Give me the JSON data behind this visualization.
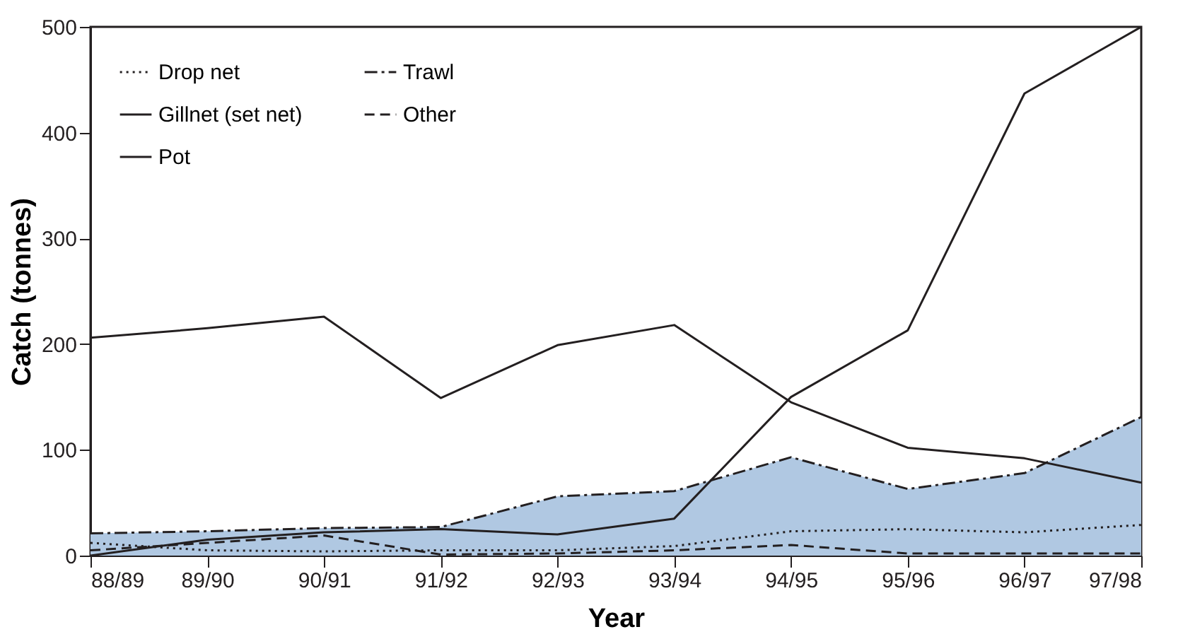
{
  "chart_data": {
    "type": "line",
    "xlabel": "Year",
    "ylabel": "Catch (tonnes)",
    "categories": [
      "88/89",
      "89/90",
      "90/91",
      "91/92",
      "92/93",
      "93/94",
      "94/95",
      "95/96",
      "96/97",
      "97/98"
    ],
    "ylim": [
      0,
      500
    ],
    "yticks": [
      0,
      100,
      200,
      300,
      400,
      500
    ],
    "grid": false,
    "legend": "top left",
    "series": [
      {
        "name": "Drop net",
        "color": "#231f20",
        "line_style": "dotted",
        "values": [
          12,
          5,
          4,
          5,
          5,
          9,
          23,
          25,
          22,
          29
        ]
      },
      {
        "name": "Gillnet (set net)",
        "color": "#231f20",
        "line_style": "solid",
        "values": [
          206,
          215,
          226,
          149,
          199,
          218,
          145,
          102,
          92,
          69
        ]
      },
      {
        "name": "Pot",
        "color": "#231f20",
        "line_style": "solid",
        "values": [
          0,
          15,
          22,
          25,
          20,
          35,
          150,
          213,
          437,
          500
        ]
      },
      {
        "name": "Trawl",
        "type": "area",
        "color": "#b0c8e2",
        "line_style": "dashdot",
        "values": [
          21,
          23,
          26,
          27,
          56,
          61,
          93,
          63,
          78,
          131
        ]
      },
      {
        "name": "Other",
        "color": "#231f20",
        "line_style": "dashed",
        "values": [
          5,
          12,
          19,
          1,
          2,
          5,
          10,
          2,
          2,
          2
        ]
      }
    ]
  }
}
